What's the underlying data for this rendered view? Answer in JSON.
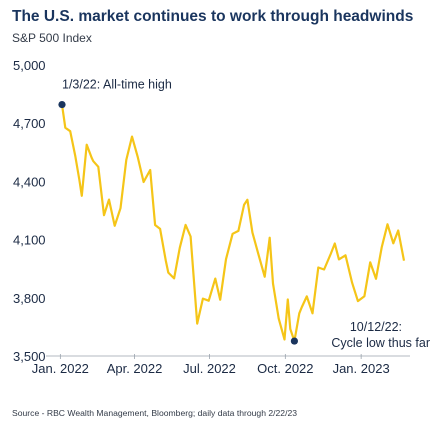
{
  "chart_data": {
    "type": "line",
    "title": "The U.S. market continues to work through headwinds",
    "subtitle": "S&P 500 Index",
    "source": "Source - RBC Wealth Management, Bloomberg; daily data through 2/22/23",
    "xlabel": "",
    "ylabel": "",
    "ylim": [
      3500,
      5000
    ],
    "xlim": [
      "2022-01-03",
      "2023-02-22"
    ],
    "y_ticks": [
      "5,000",
      "4,700",
      "4,400",
      "4,100",
      "3,800",
      "3,500"
    ],
    "y_tick_values": [
      5000,
      4700,
      4400,
      4100,
      3800,
      3500
    ],
    "x_ticks": [
      "Jan. 2022",
      "Apr. 2022",
      "Jul. 2022",
      "Oct. 2022",
      "Jan. 2023"
    ],
    "x_tick_dates": [
      "2022-01-01",
      "2022-04-01",
      "2022-07-01",
      "2022-10-01",
      "2023-01-01"
    ],
    "grid": false,
    "line_color": "#f5c518",
    "marker_color": "#1a355e",
    "series": [
      {
        "x": [
          "2022-01-03",
          "2022-01-07",
          "2022-01-13",
          "2022-01-19",
          "2022-01-24",
          "2022-01-27",
          "2022-02-02",
          "2022-02-08",
          "2022-02-10",
          "2022-02-16",
          "2022-02-23",
          "2022-03-01",
          "2022-03-08",
          "2022-03-15",
          "2022-03-22",
          "2022-03-29",
          "2022-04-05",
          "2022-04-12",
          "2022-04-20",
          "2022-04-26",
          "2022-05-02",
          "2022-05-09",
          "2022-05-12",
          "2022-05-19",
          "2022-05-26",
          "2022-06-02",
          "2022-06-08",
          "2022-06-16",
          "2022-06-23",
          "2022-06-30",
          "2022-07-08",
          "2022-07-14",
          "2022-07-21",
          "2022-07-29",
          "2022-08-05",
          "2022-08-12",
          "2022-08-16",
          "2022-08-22",
          "2022-08-29",
          "2022-09-06",
          "2022-09-12",
          "2022-09-16",
          "2022-09-23",
          "2022-09-30",
          "2022-10-04",
          "2022-10-07",
          "2022-10-12",
          "2022-10-18",
          "2022-10-21",
          "2022-10-27",
          "2022-11-03",
          "2022-11-10",
          "2022-11-17",
          "2022-11-25",
          "2022-11-30",
          "2022-12-05",
          "2022-12-13",
          "2022-12-21",
          "2022-12-28",
          "2023-01-05",
          "2023-01-12",
          "2023-01-19",
          "2023-01-26",
          "2023-02-02",
          "2023-02-09",
          "2023-02-15",
          "2023-02-22"
        ],
        "values": [
          4796,
          4677,
          4659,
          4533,
          4410,
          4326,
          4589,
          4521,
          4504,
          4475,
          4226,
          4306,
          4171,
          4262,
          4511,
          4631,
          4525,
          4397,
          4459,
          4175,
          4155,
          3991,
          3930,
          3900,
          4058,
          4176,
          4116,
          3667,
          3796,
          3785,
          3899,
          3790,
          3999,
          4130,
          4145,
          4280,
          4305,
          4137,
          4030,
          3909,
          4110,
          3873,
          3693,
          3585,
          3791,
          3639,
          3577,
          3720,
          3752,
          3807,
          3720,
          3956,
          3946,
          4026,
          4080,
          3998,
          4019,
          3878,
          3783,
          3808,
          3983,
          3898,
          4060,
          4179,
          4081,
          4147,
          3991
        ]
      }
    ],
    "annotations": [
      {
        "label": "1/3/22: All-time high",
        "x": "2022-01-03",
        "y": 4796
      },
      {
        "label_line1": "10/12/22:",
        "label_line2": "Cycle low thus far",
        "x": "2022-10-12",
        "y": 3577
      }
    ]
  }
}
